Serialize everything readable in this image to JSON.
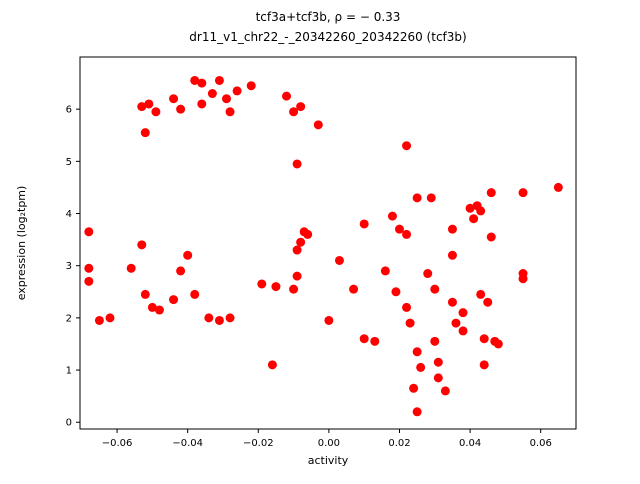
{
  "chart_data": {
    "type": "scatter",
    "title": "tcf3a+tcf3b, ρ = − 0.33",
    "subtitle": "dr11_v1_chr22_-_20342260_20342260 (tcf3b)",
    "xlabel": "activity",
    "ylabel": "expression (log₂tpm)",
    "xlim": [
      -0.0705,
      0.07
    ],
    "ylim": [
      -0.13,
      7.0
    ],
    "xticks": [
      -0.06,
      -0.04,
      -0.02,
      0.0,
      0.02,
      0.04,
      0.06
    ],
    "xtick_labels": [
      "−0.06",
      "−0.04",
      "−0.02",
      "0.00",
      "0.02",
      "0.04",
      "0.06"
    ],
    "yticks": [
      0,
      1,
      2,
      3,
      4,
      5,
      6
    ],
    "ytick_labels": [
      "0",
      "1",
      "2",
      "3",
      "4",
      "5",
      "6"
    ],
    "grid": false,
    "legend": "none",
    "marker_color": "#ff0000",
    "marker_radius": 4.5,
    "points": [
      [
        -0.053,
        6.05
      ],
      [
        -0.051,
        6.1
      ],
      [
        -0.049,
        5.95
      ],
      [
        -0.052,
        5.55
      ],
      [
        -0.044,
        6.2
      ],
      [
        -0.042,
        6.0
      ],
      [
        -0.038,
        6.55
      ],
      [
        -0.036,
        6.5
      ],
      [
        -0.036,
        6.1
      ],
      [
        -0.033,
        6.3
      ],
      [
        -0.031,
        6.55
      ],
      [
        -0.029,
        6.2
      ],
      [
        -0.028,
        5.95
      ],
      [
        -0.026,
        6.35
      ],
      [
        -0.022,
        6.45
      ],
      [
        -0.012,
        6.25
      ],
      [
        -0.01,
        5.95
      ],
      [
        -0.008,
        6.05
      ],
      [
        -0.003,
        5.7
      ],
      [
        0.022,
        5.3
      ],
      [
        -0.009,
        4.95
      ],
      [
        -0.068,
        3.65
      ],
      [
        -0.068,
        2.95
      ],
      [
        -0.068,
        2.7
      ],
      [
        -0.065,
        1.95
      ],
      [
        -0.062,
        2.0
      ],
      [
        -0.056,
        2.95
      ],
      [
        -0.053,
        3.4
      ],
      [
        -0.052,
        2.45
      ],
      [
        -0.05,
        2.2
      ],
      [
        -0.048,
        2.15
      ],
      [
        -0.044,
        2.35
      ],
      [
        -0.042,
        2.9
      ],
      [
        -0.04,
        3.2
      ],
      [
        -0.038,
        2.45
      ],
      [
        -0.034,
        2.0
      ],
      [
        -0.031,
        1.95
      ],
      [
        -0.028,
        2.0
      ],
      [
        -0.019,
        2.65
      ],
      [
        -0.015,
        2.6
      ],
      [
        -0.016,
        1.1
      ],
      [
        -0.009,
        3.3
      ],
      [
        -0.008,
        3.45
      ],
      [
        -0.007,
        3.65
      ],
      [
        -0.006,
        3.6
      ],
      [
        -0.009,
        2.8
      ],
      [
        -0.01,
        2.55
      ],
      [
        0.0,
        1.95
      ],
      [
        0.003,
        3.1
      ],
      [
        0.007,
        2.55
      ],
      [
        0.01,
        1.6
      ],
      [
        0.013,
        1.55
      ],
      [
        0.01,
        3.8
      ],
      [
        0.018,
        3.95
      ],
      [
        0.02,
        3.7
      ],
      [
        0.022,
        3.6
      ],
      [
        0.025,
        4.3
      ],
      [
        0.029,
        4.3
      ],
      [
        0.016,
        2.9
      ],
      [
        0.019,
        2.5
      ],
      [
        0.022,
        2.2
      ],
      [
        0.023,
        1.9
      ],
      [
        0.025,
        1.35
      ],
      [
        0.026,
        1.05
      ],
      [
        0.024,
        0.65
      ],
      [
        0.025,
        0.2
      ],
      [
        0.028,
        2.85
      ],
      [
        0.03,
        2.55
      ],
      [
        0.03,
        1.55
      ],
      [
        0.031,
        1.15
      ],
      [
        0.031,
        0.85
      ],
      [
        0.033,
        0.6
      ],
      [
        0.035,
        3.2
      ],
      [
        0.035,
        2.3
      ],
      [
        0.036,
        1.9
      ],
      [
        0.038,
        1.75
      ],
      [
        0.038,
        2.1
      ],
      [
        0.035,
        3.7
      ],
      [
        0.04,
        4.1
      ],
      [
        0.041,
        3.9
      ],
      [
        0.042,
        4.15
      ],
      [
        0.043,
        4.05
      ],
      [
        0.043,
        2.45
      ],
      [
        0.044,
        1.6
      ],
      [
        0.044,
        1.1
      ],
      [
        0.045,
        2.3
      ],
      [
        0.046,
        4.4
      ],
      [
        0.046,
        3.55
      ],
      [
        0.047,
        1.55
      ],
      [
        0.048,
        1.5
      ],
      [
        0.055,
        4.4
      ],
      [
        0.055,
        2.85
      ],
      [
        0.055,
        2.75
      ],
      [
        0.065,
        4.5
      ]
    ]
  }
}
